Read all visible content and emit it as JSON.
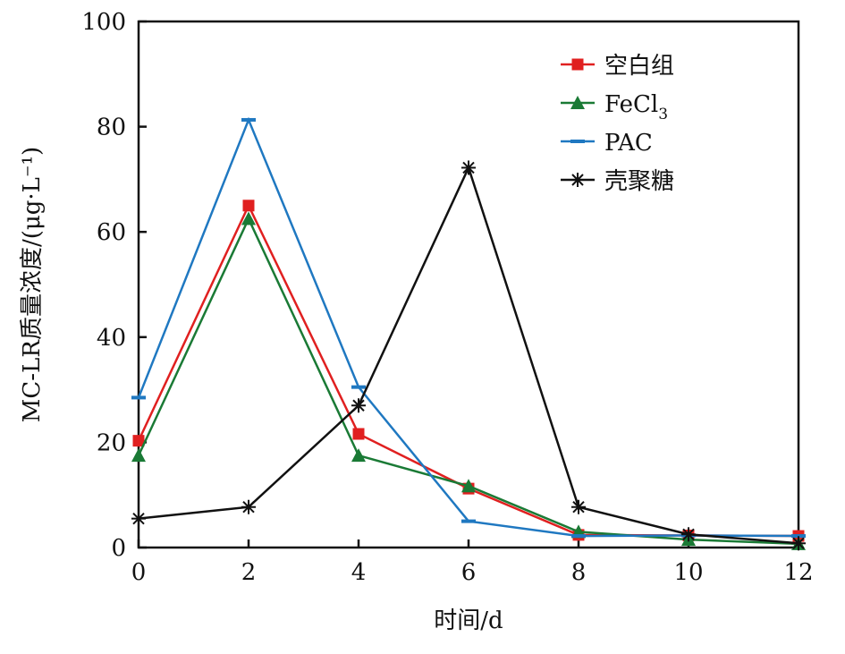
{
  "chart_data": {
    "type": "line",
    "xlabel": "时间/d",
    "ylabel": "MC-LR质量浓度/(μg·L⁻¹)",
    "xlim": [
      0,
      12
    ],
    "ylim": [
      0,
      100
    ],
    "x": [
      0,
      2,
      4,
      6,
      8,
      10,
      12
    ],
    "xticks": [
      "0",
      "2",
      "4",
      "6",
      "8",
      "10",
      "12"
    ],
    "yticks": [
      "0",
      "20",
      "40",
      "60",
      "80",
      "100"
    ],
    "legend_position": "top-right",
    "series": [
      {
        "name": "空白组",
        "color": "#e02020",
        "marker": "square",
        "values": [
          20.3,
          65,
          21.6,
          11.2,
          2.4,
          2.3,
          2.2
        ]
      },
      {
        "name": "FeCl3",
        "color": "#1a7a35",
        "marker": "triangle",
        "values": [
          17.5,
          62.5,
          17.5,
          11.7,
          3,
          1.5,
          0.7
        ]
      },
      {
        "name": "PAC",
        "color": "#1f78c1",
        "marker": "dash",
        "values": [
          28.5,
          81.3,
          30.5,
          5,
          2.2,
          2.3,
          2.2
        ]
      },
      {
        "name": "壳聚糖",
        "color": "#111111",
        "marker": "star",
        "values": [
          5.5,
          7.7,
          27,
          72.2,
          7.7,
          2.5,
          0.8
        ]
      }
    ]
  }
}
